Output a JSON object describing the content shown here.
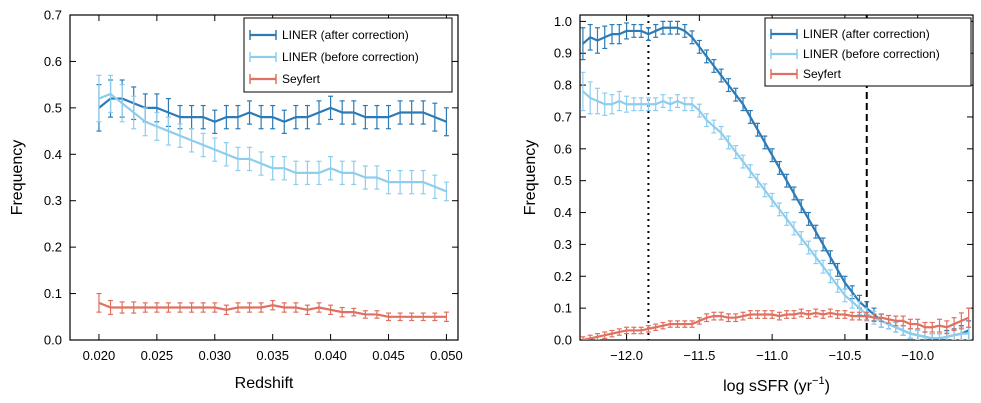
{
  "chart_data": [
    {
      "type": "line",
      "name": "frequency-vs-redshift",
      "xlabel": "Redshift",
      "ylabel": "Frequency",
      "xlim": [
        0.0175,
        0.051
      ],
      "ylim": [
        0.0,
        0.7
      ],
      "xticks": [
        0.02,
        0.025,
        0.03,
        0.035,
        0.04,
        0.045,
        0.05
      ],
      "xtick_labels": [
        "0.020",
        "0.025",
        "0.030",
        "0.035",
        "0.040",
        "0.045",
        "0.050"
      ],
      "yticks": [
        0.0,
        0.1,
        0.2,
        0.3,
        0.4,
        0.5,
        0.6,
        0.7
      ],
      "ytick_labels": [
        "0.0",
        "0.1",
        "0.2",
        "0.3",
        "0.4",
        "0.5",
        "0.6",
        "0.7"
      ],
      "legend_position": "top-right",
      "x": [
        0.02,
        0.021,
        0.022,
        0.023,
        0.024,
        0.025,
        0.026,
        0.027,
        0.028,
        0.029,
        0.03,
        0.031,
        0.032,
        0.033,
        0.034,
        0.035,
        0.036,
        0.037,
        0.038,
        0.039,
        0.04,
        0.041,
        0.042,
        0.043,
        0.044,
        0.045,
        0.046,
        0.047,
        0.048,
        0.049,
        0.05
      ],
      "series": [
        {
          "name": "LINER (after correction)",
          "color": "#2c7bb6",
          "values": [
            0.5,
            0.52,
            0.52,
            0.51,
            0.5,
            0.5,
            0.49,
            0.48,
            0.48,
            0.48,
            0.47,
            0.48,
            0.48,
            0.49,
            0.48,
            0.48,
            0.47,
            0.48,
            0.48,
            0.49,
            0.5,
            0.49,
            0.49,
            0.48,
            0.48,
            0.48,
            0.49,
            0.49,
            0.49,
            0.48,
            0.47
          ],
          "error": [
            0.05,
            0.04,
            0.04,
            0.035,
            0.03,
            0.03,
            0.03,
            0.025,
            0.025,
            0.025,
            0.025,
            0.025,
            0.025,
            0.025,
            0.025,
            0.025,
            0.025,
            0.025,
            0.025,
            0.025,
            0.025,
            0.025,
            0.025,
            0.025,
            0.025,
            0.025,
            0.025,
            0.025,
            0.025,
            0.03,
            0.03
          ]
        },
        {
          "name": "LINER (before correction)",
          "color": "#8fcdee",
          "values": [
            0.52,
            0.53,
            0.51,
            0.49,
            0.47,
            0.46,
            0.45,
            0.44,
            0.43,
            0.42,
            0.41,
            0.4,
            0.39,
            0.39,
            0.38,
            0.37,
            0.37,
            0.36,
            0.36,
            0.36,
            0.37,
            0.36,
            0.36,
            0.35,
            0.35,
            0.34,
            0.34,
            0.34,
            0.34,
            0.33,
            0.32
          ],
          "error": [
            0.05,
            0.04,
            0.04,
            0.035,
            0.03,
            0.03,
            0.03,
            0.025,
            0.025,
            0.025,
            0.025,
            0.025,
            0.025,
            0.025,
            0.025,
            0.025,
            0.025,
            0.025,
            0.025,
            0.025,
            0.025,
            0.025,
            0.025,
            0.025,
            0.025,
            0.025,
            0.025,
            0.025,
            0.025,
            0.025,
            0.02
          ]
        },
        {
          "name": "Seyfert",
          "color": "#e07060",
          "values": [
            0.08,
            0.07,
            0.07,
            0.07,
            0.07,
            0.07,
            0.07,
            0.07,
            0.07,
            0.07,
            0.07,
            0.065,
            0.07,
            0.07,
            0.07,
            0.075,
            0.07,
            0.07,
            0.065,
            0.07,
            0.065,
            0.06,
            0.06,
            0.055,
            0.055,
            0.05,
            0.05,
            0.05,
            0.05,
            0.05,
            0.05
          ],
          "error": [
            0.02,
            0.015,
            0.012,
            0.012,
            0.01,
            0.01,
            0.01,
            0.01,
            0.01,
            0.01,
            0.01,
            0.01,
            0.01,
            0.01,
            0.01,
            0.01,
            0.01,
            0.01,
            0.01,
            0.01,
            0.01,
            0.01,
            0.008,
            0.008,
            0.008,
            0.008,
            0.008,
            0.008,
            0.008,
            0.008,
            0.01
          ]
        }
      ]
    },
    {
      "type": "line",
      "name": "frequency-vs-log-ssfr",
      "xlabel": "log sSFR (yr",
      "xlabel_sup": "−1",
      "xlabel_close": ")",
      "ylabel": "Frequency",
      "xlim": [
        -12.32,
        -9.62
      ],
      "ylim": [
        0.0,
        1.02
      ],
      "xticks": [
        -12.0,
        -11.5,
        -11.0,
        -10.5,
        -10.0
      ],
      "xtick_labels": [
        "−12.0",
        "−11.5",
        "−11.0",
        "−10.5",
        "−10.0"
      ],
      "yticks": [
        0.0,
        0.1,
        0.2,
        0.3,
        0.4,
        0.5,
        0.6,
        0.7,
        0.8,
        0.9,
        1.0
      ],
      "ytick_labels": [
        "0.0",
        "0.1",
        "0.2",
        "0.3",
        "0.4",
        "0.5",
        "0.6",
        "0.7",
        "0.8",
        "0.9",
        "1.0"
      ],
      "vlines": [
        {
          "x": -11.85,
          "style": "dotted"
        },
        {
          "x": -10.35,
          "style": "dashed"
        }
      ],
      "legend_position": "top-right",
      "x": [
        -12.3,
        -12.25,
        -12.2,
        -12.15,
        -12.1,
        -12.05,
        -12.0,
        -11.95,
        -11.9,
        -11.85,
        -11.8,
        -11.75,
        -11.7,
        -11.65,
        -11.6,
        -11.55,
        -11.5,
        -11.45,
        -11.4,
        -11.35,
        -11.3,
        -11.25,
        -11.2,
        -11.15,
        -11.1,
        -11.05,
        -11.0,
        -10.95,
        -10.9,
        -10.85,
        -10.8,
        -10.75,
        -10.7,
        -10.65,
        -10.6,
        -10.55,
        -10.5,
        -10.45,
        -10.4,
        -10.35,
        -10.3,
        -10.25,
        -10.2,
        -10.15,
        -10.1,
        -10.05,
        -10.0,
        -9.95,
        -9.9,
        -9.85,
        -9.8,
        -9.75,
        -9.7,
        -9.65
      ],
      "series": [
        {
          "name": "LINER (after correction)",
          "color": "#2c7bb6",
          "values": [
            0.93,
            0.95,
            0.94,
            0.95,
            0.96,
            0.96,
            0.97,
            0.97,
            0.97,
            0.96,
            0.97,
            0.98,
            0.98,
            0.98,
            0.97,
            0.95,
            0.92,
            0.89,
            0.86,
            0.83,
            0.8,
            0.77,
            0.74,
            0.7,
            0.66,
            0.62,
            0.58,
            0.54,
            0.5,
            0.46,
            0.42,
            0.38,
            0.34,
            0.3,
            0.26,
            0.22,
            0.18,
            0.15,
            0.12,
            0.1,
            0.08,
            0.06,
            0.05,
            0.04,
            0.03,
            0.02,
            0.015,
            0.01,
            0.005,
            0.005,
            0.01,
            0.015,
            0.02,
            0.03
          ],
          "error": [
            0.05,
            0.04,
            0.04,
            0.035,
            0.03,
            0.03,
            0.025,
            0.02,
            0.02,
            0.02,
            0.02,
            0.02,
            0.02,
            0.02,
            0.02,
            0.02,
            0.02,
            0.02,
            0.02,
            0.02,
            0.02,
            0.02,
            0.02,
            0.02,
            0.02,
            0.02,
            0.02,
            0.02,
            0.02,
            0.02,
            0.02,
            0.02,
            0.02,
            0.02,
            0.02,
            0.02,
            0.02,
            0.02,
            0.02,
            0.02,
            0.02,
            0.02,
            0.015,
            0.015,
            0.015,
            0.015,
            0.015,
            0.015,
            0.015,
            0.015,
            0.02,
            0.02,
            0.025,
            0.03
          ]
        },
        {
          "name": "LINER (before correction)",
          "color": "#8fcdee",
          "values": [
            0.78,
            0.76,
            0.75,
            0.74,
            0.74,
            0.75,
            0.74,
            0.74,
            0.74,
            0.74,
            0.74,
            0.75,
            0.74,
            0.75,
            0.74,
            0.74,
            0.72,
            0.69,
            0.67,
            0.65,
            0.62,
            0.59,
            0.56,
            0.53,
            0.5,
            0.47,
            0.44,
            0.41,
            0.38,
            0.35,
            0.32,
            0.29,
            0.26,
            0.23,
            0.2,
            0.17,
            0.14,
            0.12,
            0.1,
            0.08,
            0.07,
            0.06,
            0.05,
            0.04,
            0.03,
            0.02,
            0.015,
            0.01,
            0.005,
            0.005,
            0.01,
            0.015,
            0.02,
            0.02
          ],
          "error": [
            0.06,
            0.05,
            0.04,
            0.035,
            0.03,
            0.03,
            0.025,
            0.02,
            0.02,
            0.02,
            0.02,
            0.02,
            0.02,
            0.02,
            0.02,
            0.02,
            0.02,
            0.02,
            0.02,
            0.02,
            0.02,
            0.02,
            0.02,
            0.02,
            0.02,
            0.02,
            0.02,
            0.02,
            0.02,
            0.02,
            0.02,
            0.02,
            0.02,
            0.02,
            0.02,
            0.02,
            0.02,
            0.02,
            0.02,
            0.02,
            0.02,
            0.02,
            0.015,
            0.015,
            0.015,
            0.015,
            0.015,
            0.015,
            0.015,
            0.015,
            0.015,
            0.015,
            0.02,
            0.02
          ]
        },
        {
          "name": "Seyfert",
          "color": "#e07060",
          "values": [
            0.0,
            0.005,
            0.01,
            0.015,
            0.02,
            0.025,
            0.03,
            0.03,
            0.03,
            0.035,
            0.04,
            0.045,
            0.05,
            0.05,
            0.05,
            0.05,
            0.06,
            0.07,
            0.075,
            0.075,
            0.07,
            0.07,
            0.075,
            0.08,
            0.08,
            0.08,
            0.08,
            0.075,
            0.08,
            0.08,
            0.085,
            0.08,
            0.085,
            0.08,
            0.085,
            0.08,
            0.08,
            0.075,
            0.075,
            0.075,
            0.07,
            0.07,
            0.065,
            0.06,
            0.06,
            0.05,
            0.05,
            0.04,
            0.04,
            0.045,
            0.04,
            0.05,
            0.06,
            0.07
          ],
          "error": [
            0.01,
            0.01,
            0.01,
            0.01,
            0.01,
            0.01,
            0.01,
            0.01,
            0.01,
            0.01,
            0.01,
            0.01,
            0.01,
            0.01,
            0.01,
            0.01,
            0.01,
            0.012,
            0.012,
            0.012,
            0.012,
            0.012,
            0.012,
            0.012,
            0.012,
            0.012,
            0.012,
            0.012,
            0.012,
            0.012,
            0.012,
            0.012,
            0.012,
            0.012,
            0.012,
            0.012,
            0.012,
            0.012,
            0.012,
            0.012,
            0.012,
            0.012,
            0.012,
            0.015,
            0.015,
            0.015,
            0.015,
            0.015,
            0.015,
            0.02,
            0.02,
            0.02,
            0.025,
            0.03
          ]
        }
      ]
    }
  ]
}
